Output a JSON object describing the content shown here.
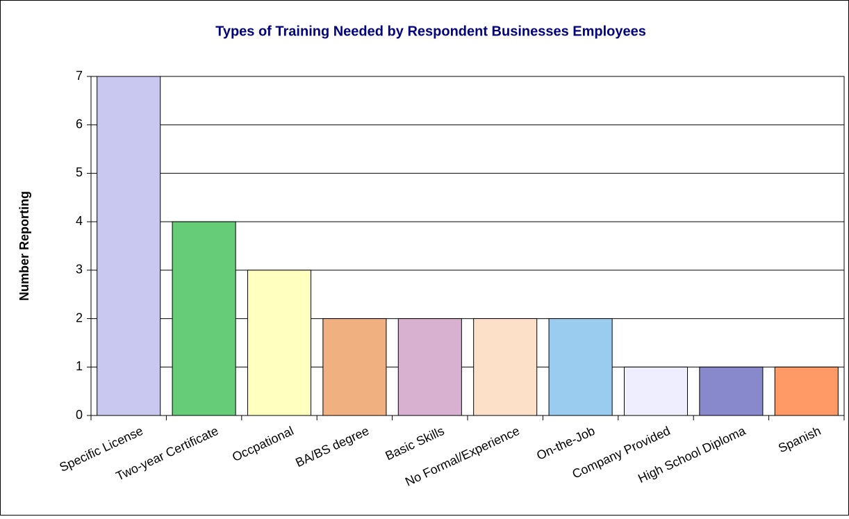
{
  "chart_data": {
    "type": "bar",
    "title": "Types of Training Needed by Respondent  Businesses Employees",
    "y_label": "Number Reporting",
    "categories": [
      "Specific License",
      "Two-year Certificate",
      "Occpational",
      "BA/BS degree",
      "Basic Skills",
      "No Formal/Experience",
      "On-the-Job",
      "Company Provided",
      "High School Diploma",
      "Spanish"
    ],
    "values": [
      7,
      4,
      3,
      2,
      2,
      2,
      2,
      1,
      1,
      1
    ],
    "colors": [
      "#c8c8f0",
      "#66cc77",
      "#ffffc0",
      "#f0b080",
      "#d8b0d0",
      "#fce0c8",
      "#99ccee",
      "#eeeeff",
      "#8888cc",
      "#ff9966"
    ],
    "ylim": [
      0,
      7
    ],
    "yticks": [
      0,
      1,
      2,
      3,
      4,
      5,
      6,
      7
    ],
    "grid": true
  }
}
